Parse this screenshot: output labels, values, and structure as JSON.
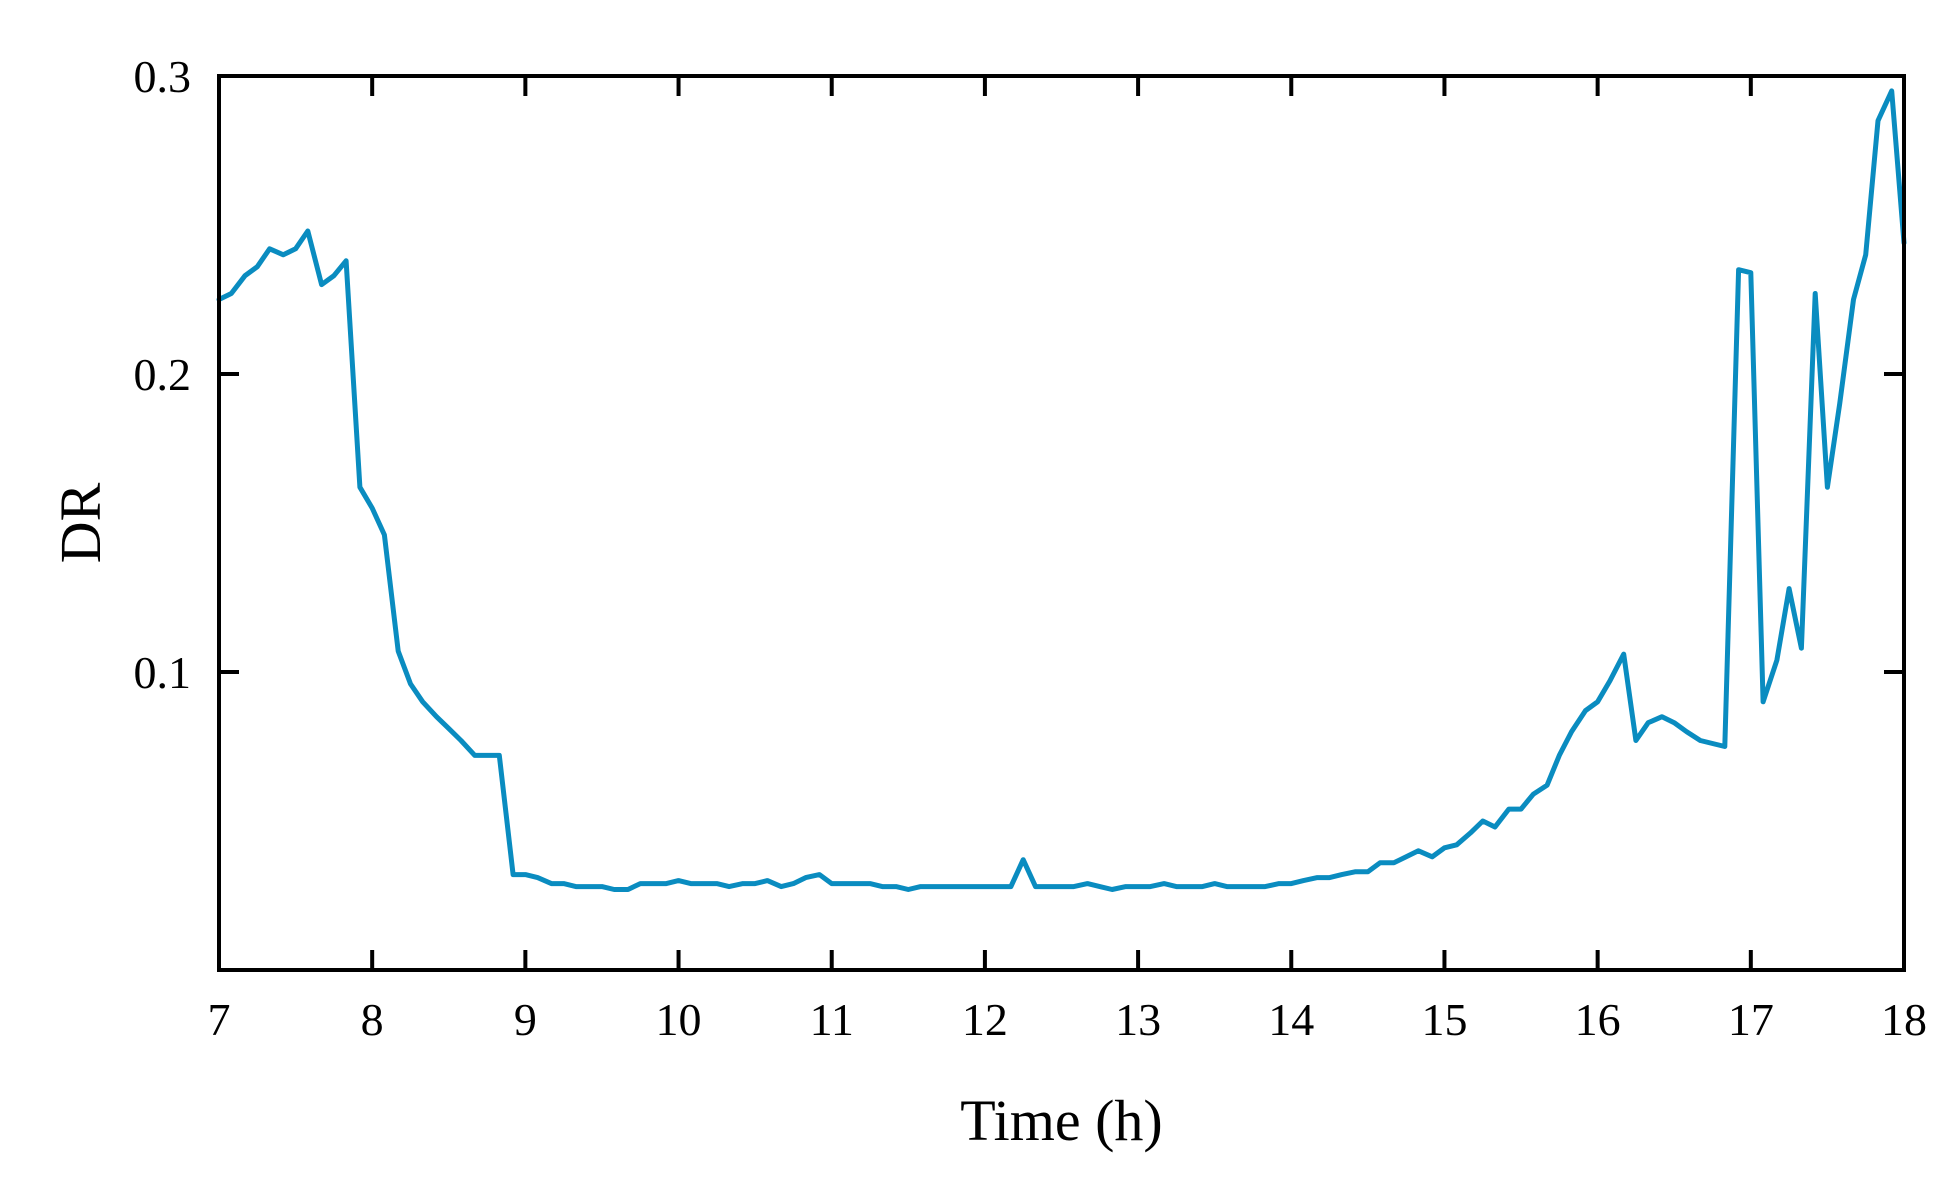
{
  "chart_data": {
    "type": "line",
    "xlabel": "Time (h)",
    "ylabel": "DR",
    "xlim": [
      7,
      18
    ],
    "ylim": [
      0,
      0.3
    ],
    "x_ticks": [
      "7",
      "8",
      "9",
      "10",
      "11",
      "12",
      "13",
      "14",
      "15",
      "16",
      "17",
      "18"
    ],
    "y_ticks": [
      "0.1",
      "0.2",
      "0.3"
    ],
    "y_tick_values": [
      0.1,
      0.2,
      0.3
    ],
    "grid": false,
    "line_color": "#0a8cc0",
    "series": [
      {
        "x": [
          7.0,
          7.08,
          7.17,
          7.25,
          7.33,
          7.42,
          7.5,
          7.58,
          7.67,
          7.75,
          7.83,
          7.92,
          8.0,
          8.08,
          8.17,
          8.25,
          8.33,
          8.42,
          8.5,
          8.58,
          8.67,
          8.75,
          8.83,
          8.92,
          9.0,
          9.08,
          9.17,
          9.25,
          9.33,
          9.42,
          9.5,
          9.58,
          9.67,
          9.75,
          9.83,
          9.92,
          10.0,
          10.08,
          10.17,
          10.25,
          10.33,
          10.42,
          10.5,
          10.58,
          10.67,
          10.75,
          10.83,
          10.92,
          11.0,
          11.08,
          11.17,
          11.25,
          11.33,
          11.42,
          11.5,
          11.58,
          11.67,
          11.75,
          11.83,
          11.92,
          12.0,
          12.08,
          12.17,
          12.25,
          12.33,
          12.42,
          12.5,
          12.58,
          12.67,
          12.75,
          12.83,
          12.92,
          13.0,
          13.08,
          13.17,
          13.25,
          13.33,
          13.42,
          13.5,
          13.58,
          13.67,
          13.75,
          13.83,
          13.92,
          14.0,
          14.08,
          14.17,
          14.25,
          14.33,
          14.42,
          14.5,
          14.58,
          14.67,
          14.75,
          14.83,
          14.92,
          15.0,
          15.08,
          15.17,
          15.25,
          15.33,
          15.42,
          15.5,
          15.58,
          15.67,
          15.75,
          15.83,
          15.92,
          16.0,
          16.08,
          16.17,
          16.25,
          16.33,
          16.42,
          16.5,
          16.58,
          16.67,
          16.75,
          16.83,
          16.92,
          17.0,
          17.08,
          17.17,
          17.25,
          17.33,
          17.42,
          17.5,
          17.58,
          17.67,
          17.75,
          17.83,
          17.92,
          18.0
        ],
        "y": [
          0.225,
          0.227,
          0.233,
          0.236,
          0.242,
          0.24,
          0.242,
          0.248,
          0.23,
          0.233,
          0.238,
          0.162,
          0.155,
          0.146,
          0.107,
          0.096,
          0.09,
          0.085,
          0.081,
          0.077,
          0.072,
          0.072,
          0.072,
          0.032,
          0.032,
          0.031,
          0.029,
          0.029,
          0.028,
          0.028,
          0.028,
          0.027,
          0.027,
          0.029,
          0.029,
          0.029,
          0.03,
          0.029,
          0.029,
          0.029,
          0.028,
          0.029,
          0.029,
          0.03,
          0.028,
          0.029,
          0.031,
          0.032,
          0.029,
          0.029,
          0.029,
          0.029,
          0.028,
          0.028,
          0.027,
          0.028,
          0.028,
          0.028,
          0.028,
          0.028,
          0.028,
          0.028,
          0.028,
          0.037,
          0.028,
          0.028,
          0.028,
          0.028,
          0.029,
          0.028,
          0.027,
          0.028,
          0.028,
          0.028,
          0.029,
          0.028,
          0.028,
          0.028,
          0.029,
          0.028,
          0.028,
          0.028,
          0.028,
          0.029,
          0.029,
          0.03,
          0.031,
          0.031,
          0.032,
          0.033,
          0.033,
          0.036,
          0.036,
          0.038,
          0.04,
          0.038,
          0.041,
          0.042,
          0.046,
          0.05,
          0.048,
          0.054,
          0.054,
          0.059,
          0.062,
          0.072,
          0.08,
          0.087,
          0.09,
          0.097,
          0.106,
          0.077,
          0.083,
          0.085,
          0.083,
          0.08,
          0.077,
          0.076,
          0.075,
          0.235,
          0.234,
          0.09,
          0.104,
          0.128,
          0.108,
          0.227,
          0.162,
          0.19,
          0.225,
          0.24,
          0.285,
          0.295,
          0.244
        ]
      }
    ]
  }
}
